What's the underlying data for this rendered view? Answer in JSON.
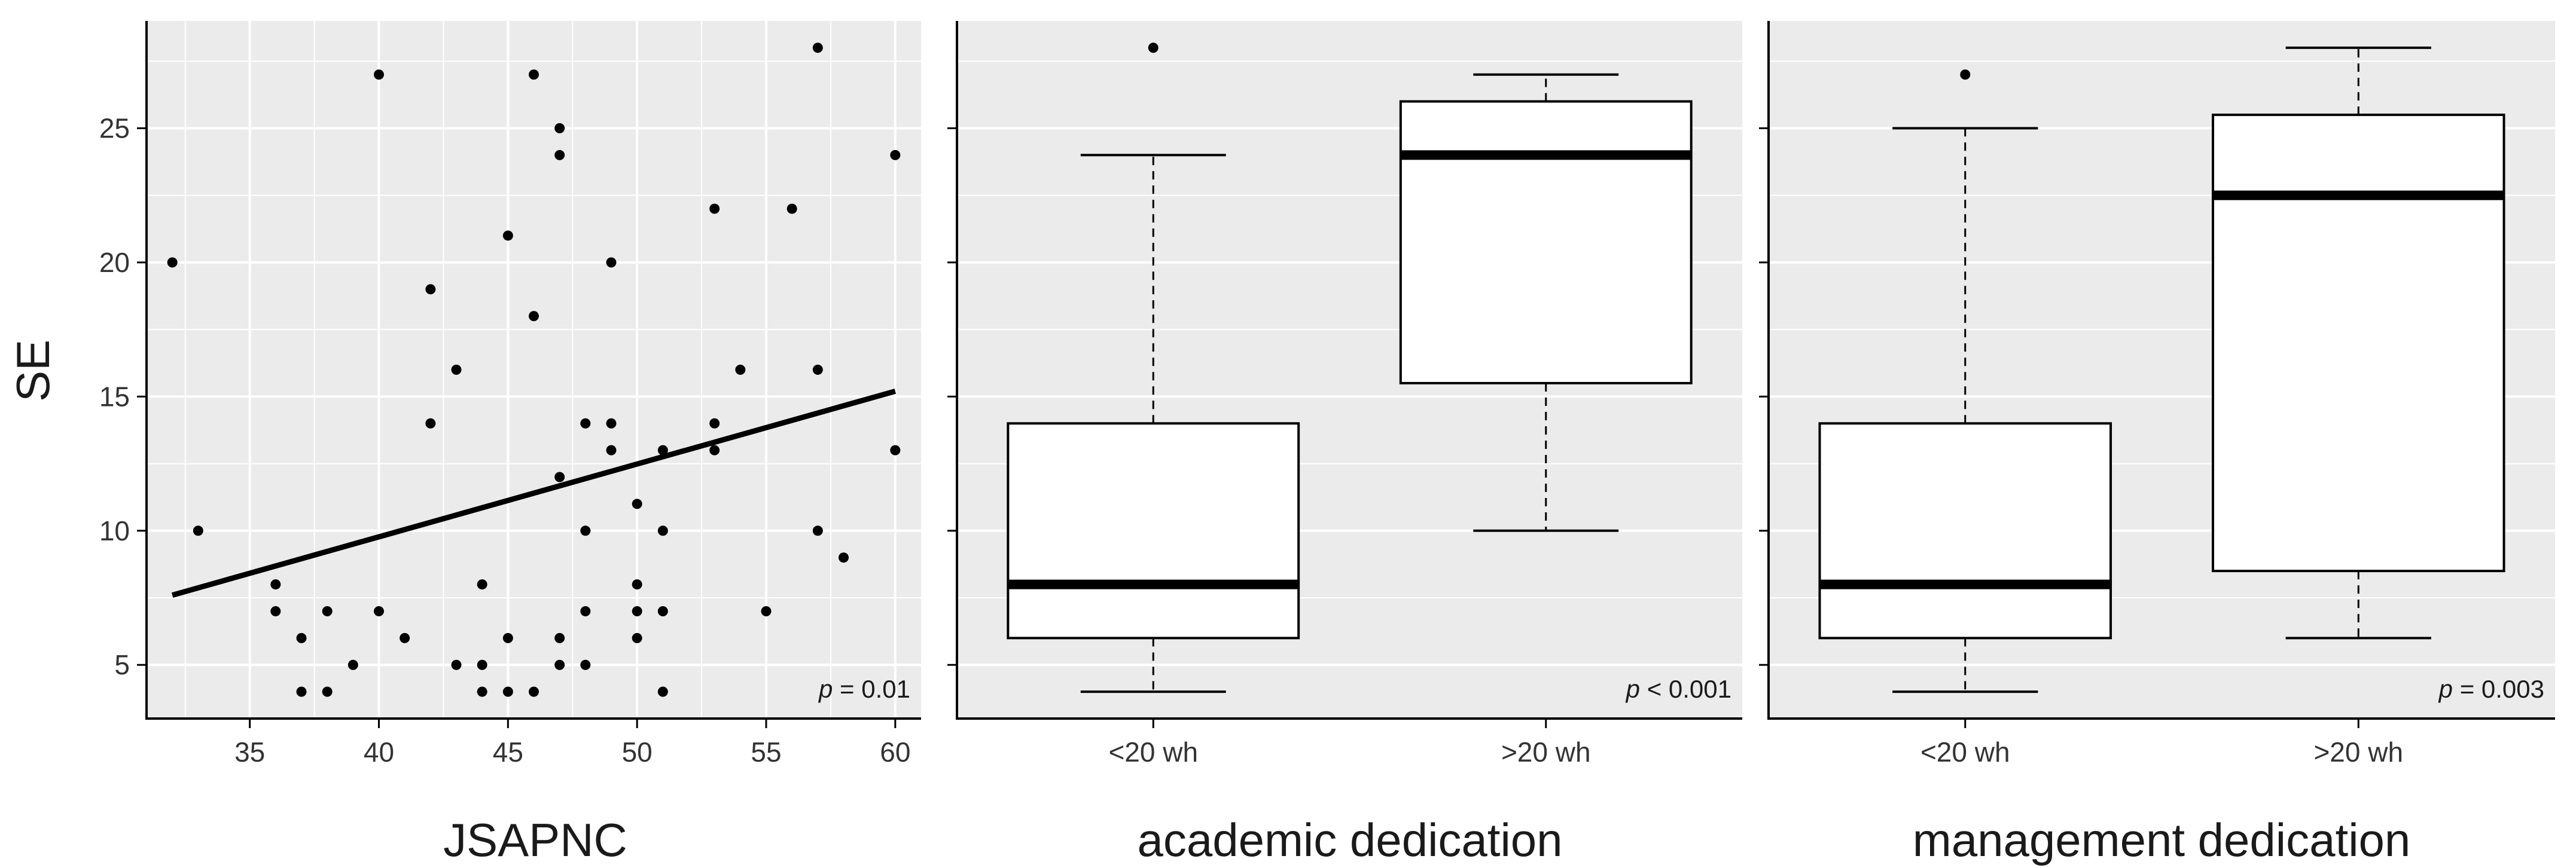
{
  "chart_data": [
    {
      "type": "scatter",
      "xlabel": "JSAPNC",
      "ylabel": "SE",
      "xlim": [
        31,
        61
      ],
      "ylim": [
        3,
        29
      ],
      "xticks": [
        "35",
        "40",
        "45",
        "50",
        "55",
        "60"
      ],
      "yticks": [
        "5",
        "10",
        "15",
        "20",
        "25"
      ],
      "grid": true,
      "points": [
        [
          32,
          20
        ],
        [
          33,
          10
        ],
        [
          36,
          8
        ],
        [
          36,
          7
        ],
        [
          37,
          6
        ],
        [
          37,
          4
        ],
        [
          38,
          7
        ],
        [
          38,
          4
        ],
        [
          39,
          5
        ],
        [
          40,
          27
        ],
        [
          40,
          7
        ],
        [
          41,
          6
        ],
        [
          42,
          19
        ],
        [
          42,
          14
        ],
        [
          43,
          16
        ],
        [
          43,
          5
        ],
        [
          44,
          8
        ],
        [
          44,
          5
        ],
        [
          44,
          4
        ],
        [
          45,
          21
        ],
        [
          45,
          6
        ],
        [
          45,
          4
        ],
        [
          46,
          27
        ],
        [
          46,
          18
        ],
        [
          46,
          4
        ],
        [
          47,
          25
        ],
        [
          47,
          24
        ],
        [
          47,
          12
        ],
        [
          47,
          6
        ],
        [
          47,
          5
        ],
        [
          48,
          14
        ],
        [
          48,
          10
        ],
        [
          48,
          7
        ],
        [
          48,
          5
        ],
        [
          49,
          20
        ],
        [
          49,
          14
        ],
        [
          49,
          13
        ],
        [
          50,
          11
        ],
        [
          50,
          8
        ],
        [
          50,
          7
        ],
        [
          50,
          6
        ],
        [
          51,
          13
        ],
        [
          51,
          10
        ],
        [
          51,
          7
        ],
        [
          51,
          4
        ],
        [
          53,
          22
        ],
        [
          53,
          14
        ],
        [
          53,
          13
        ],
        [
          54,
          16
        ],
        [
          55,
          7
        ],
        [
          56,
          22
        ],
        [
          57,
          28
        ],
        [
          57,
          16
        ],
        [
          57,
          10
        ],
        [
          58,
          9
        ],
        [
          60,
          24
        ],
        [
          60,
          13
        ]
      ],
      "fit_line": {
        "x": [
          32,
          60
        ],
        "y": [
          7.6,
          15.2
        ]
      },
      "annotation": {
        "italic": "p",
        "text": " = 0.01"
      }
    },
    {
      "type": "box",
      "xlabel": "academic dedication",
      "ylim": [
        3,
        29
      ],
      "categories": [
        "<20 wh",
        ">20 wh"
      ],
      "boxes": [
        {
          "whisker_low": 4,
          "q1": 6,
          "median": 8,
          "q3": 14,
          "whisker_high": 24,
          "outliers": [
            28
          ]
        },
        {
          "whisker_low": 10,
          "q1": 15.5,
          "median": 24,
          "q3": 26,
          "whisker_high": 27,
          "outliers": []
        }
      ],
      "grid": true,
      "annotation": {
        "italic": "p",
        "text": " < 0.001"
      }
    },
    {
      "type": "box",
      "xlabel": "management dedication",
      "ylim": [
        3,
        29
      ],
      "categories": [
        "<20 wh",
        ">20 wh"
      ],
      "boxes": [
        {
          "whisker_low": 4,
          "q1": 6,
          "median": 8,
          "q3": 14,
          "whisker_high": 25,
          "outliers": [
            27
          ]
        },
        {
          "whisker_low": 6,
          "q1": 8.5,
          "median": 22.5,
          "q3": 25.5,
          "whisker_high": 28,
          "outliers": []
        }
      ],
      "grid": true,
      "annotation": {
        "italic": "p",
        "text": " = 0.003"
      }
    }
  ],
  "colors": {
    "panel_bg": "#ebebeb",
    "grid": "#ffffff",
    "ink": "#000000",
    "box_fill": "#ffffff"
  }
}
